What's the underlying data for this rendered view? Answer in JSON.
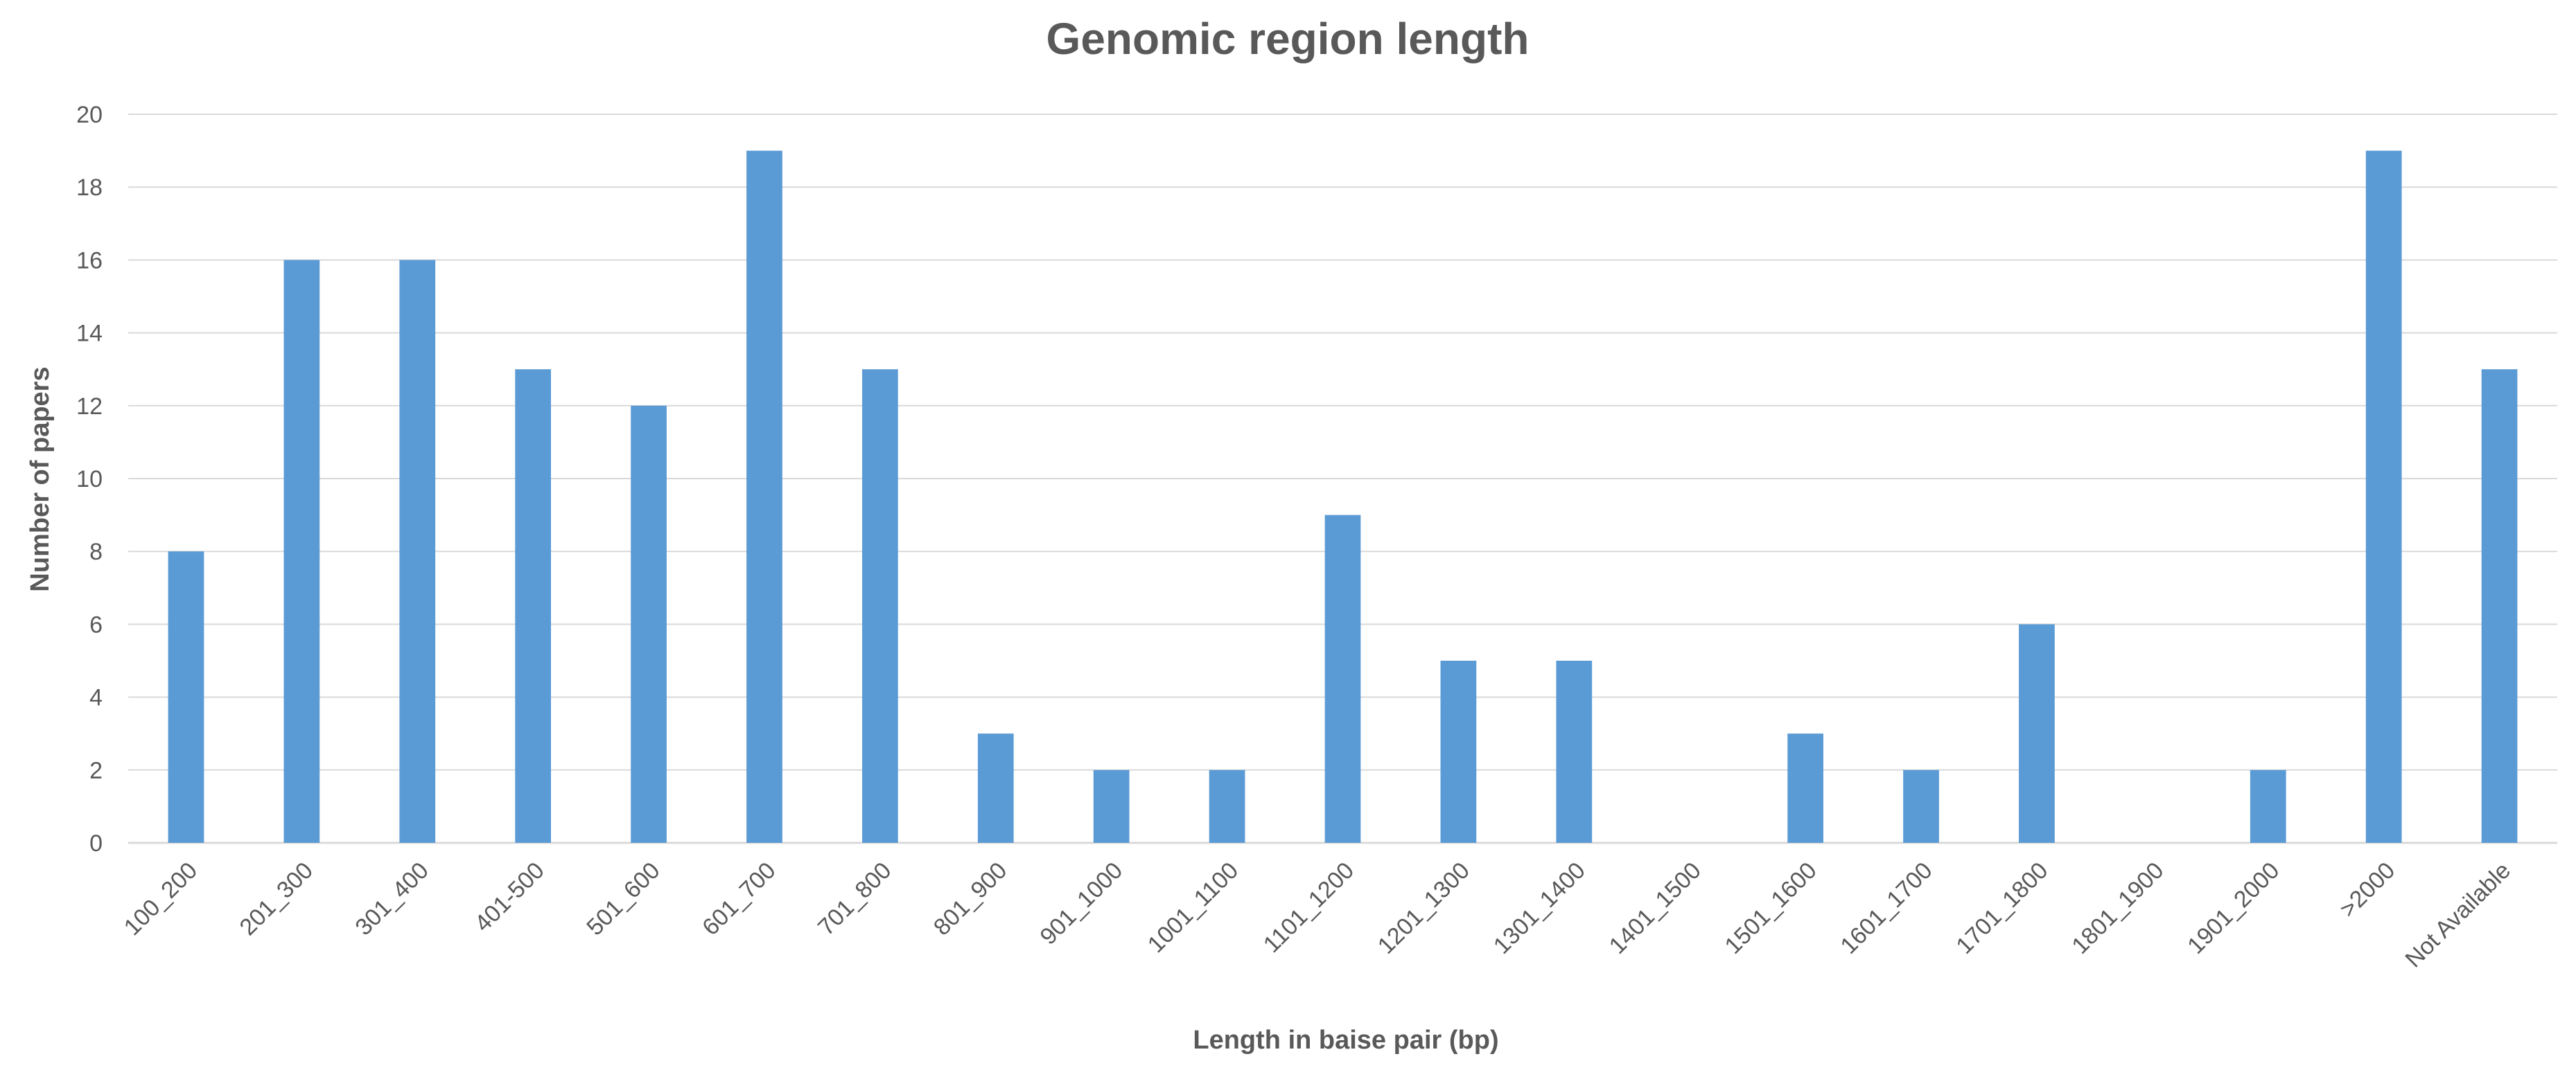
{
  "chart_data": {
    "type": "bar",
    "title": "Genomic region length",
    "xlabel": "Length in baise pair (bp)",
    "ylabel": "Number of papers",
    "categories": [
      "100_200",
      "201_300",
      "301_400",
      "401-500",
      "501_600",
      "601_700",
      "701_800",
      "801_900",
      "901_1000",
      "1001_1100",
      "1101_1200",
      "1201_1300",
      "1301_1400",
      "1401_1500",
      "1501_1600",
      "1601_1700",
      "1701_1800",
      "1801_1900",
      "1901_2000",
      ">2000",
      "Not Available"
    ],
    "values": [
      8,
      16,
      16,
      13,
      12,
      19,
      13,
      3,
      2,
      2,
      9,
      5,
      5,
      0,
      3,
      2,
      6,
      0,
      2,
      19,
      13
    ],
    "ylim": [
      0,
      20
    ],
    "yticks": [
      0,
      2,
      4,
      6,
      8,
      10,
      12,
      14,
      16,
      18,
      20
    ],
    "grid": true,
    "legend": "none",
    "bar_color": "#5b9bd5"
  }
}
